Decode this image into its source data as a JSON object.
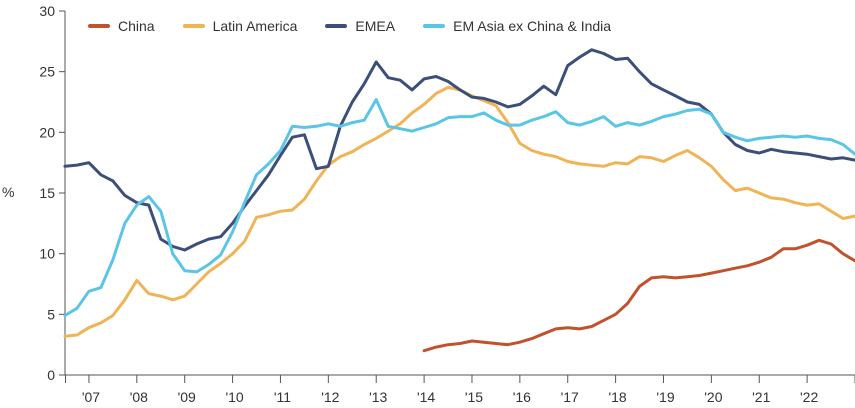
{
  "chart_data": {
    "type": "line",
    "ylabel": "%",
    "ylim": [
      0,
      30
    ],
    "yticks": [
      "0",
      "5",
      "10",
      "15",
      "20",
      "25",
      "30"
    ],
    "xlim": [
      2006.5,
      2023.0
    ],
    "xtick_labels": [
      "'07",
      "'08",
      "'09",
      "'10",
      "'11",
      "'12",
      "'13",
      "'14",
      "'15",
      "'16",
      "'17",
      "'18",
      "'19",
      "'20",
      "'21",
      "'22"
    ],
    "legend_position": "top",
    "grid": false,
    "series": [
      {
        "name": "China",
        "color": "#c0532d",
        "x": [
          2014.0,
          2014.25,
          2014.5,
          2014.75,
          2015.0,
          2015.25,
          2015.5,
          2015.75,
          2016.0,
          2016.25,
          2016.5,
          2016.75,
          2017.0,
          2017.25,
          2017.5,
          2017.75,
          2018.0,
          2018.25,
          2018.5,
          2018.75,
          2019.0,
          2019.25,
          2019.5,
          2019.75,
          2020.0,
          2020.25,
          2020.5,
          2020.75,
          2021.0,
          2021.25,
          2021.5,
          2021.75,
          2022.0,
          2022.25,
          2022.5,
          2022.75,
          2023.0
        ],
        "values": [
          2.0,
          2.3,
          2.5,
          2.6,
          2.8,
          2.7,
          2.6,
          2.5,
          2.7,
          3.0,
          3.4,
          3.8,
          3.9,
          3.8,
          4.0,
          4.5,
          5.0,
          5.9,
          7.3,
          8.0,
          8.1,
          8.0,
          8.1,
          8.2,
          8.4,
          8.6,
          8.8,
          9.0,
          9.3,
          9.7,
          10.4,
          10.4,
          10.7,
          11.1,
          10.8,
          10.0,
          9.4
        ]
      },
      {
        "name": "Latin America",
        "color": "#f0b456",
        "x": [
          2006.5,
          2006.75,
          2007.0,
          2007.25,
          2007.5,
          2007.75,
          2008.0,
          2008.25,
          2008.5,
          2008.75,
          2009.0,
          2009.25,
          2009.5,
          2009.75,
          2010.0,
          2010.25,
          2010.5,
          2010.75,
          2011.0,
          2011.25,
          2011.5,
          2011.75,
          2012.0,
          2012.25,
          2012.5,
          2012.75,
          2013.0,
          2013.25,
          2013.5,
          2013.75,
          2014.0,
          2014.25,
          2014.5,
          2014.75,
          2015.0,
          2015.25,
          2015.5,
          2015.75,
          2016.0,
          2016.25,
          2016.5,
          2016.75,
          2017.0,
          2017.25,
          2017.5,
          2017.75,
          2018.0,
          2018.25,
          2018.5,
          2018.75,
          2019.0,
          2019.25,
          2019.5,
          2019.75,
          2020.0,
          2020.25,
          2020.5,
          2020.75,
          2021.0,
          2021.25,
          2021.5,
          2021.75,
          2022.0,
          2022.25,
          2022.5,
          2022.75,
          2023.0
        ],
        "values": [
          3.2,
          3.3,
          3.9,
          4.3,
          4.9,
          6.2,
          7.8,
          6.7,
          6.5,
          6.2,
          6.5,
          7.5,
          8.5,
          9.2,
          10.0,
          11.0,
          13.0,
          13.2,
          13.5,
          13.6,
          14.5,
          16.0,
          17.3,
          18.0,
          18.4,
          19.0,
          19.5,
          20.1,
          20.7,
          21.6,
          22.3,
          23.2,
          23.7,
          23.5,
          23.0,
          22.6,
          22.2,
          20.8,
          19.1,
          18.5,
          18.2,
          18.0,
          17.6,
          17.4,
          17.3,
          17.2,
          17.5,
          17.4,
          18.0,
          17.9,
          17.6,
          18.1,
          18.5,
          17.9,
          17.2,
          16.1,
          15.2,
          15.4,
          15.0,
          14.6,
          14.5,
          14.2,
          14.0,
          14.1,
          13.5,
          12.9,
          13.1
        ]
      },
      {
        "name": "EMEA",
        "color": "#3b4f7a",
        "x": [
          2006.5,
          2006.75,
          2007.0,
          2007.25,
          2007.5,
          2007.75,
          2008.0,
          2008.25,
          2008.5,
          2008.75,
          2009.0,
          2009.25,
          2009.5,
          2009.75,
          2010.0,
          2010.25,
          2010.5,
          2010.75,
          2011.0,
          2011.25,
          2011.5,
          2011.75,
          2012.0,
          2012.25,
          2012.5,
          2012.75,
          2013.0,
          2013.25,
          2013.5,
          2013.75,
          2014.0,
          2014.25,
          2014.5,
          2014.75,
          2015.0,
          2015.25,
          2015.5,
          2015.75,
          2016.0,
          2016.25,
          2016.5,
          2016.75,
          2017.0,
          2017.25,
          2017.5,
          2017.75,
          2018.0,
          2018.25,
          2018.5,
          2018.75,
          2019.0,
          2019.25,
          2019.5,
          2019.75,
          2020.0,
          2020.25,
          2020.5,
          2020.75,
          2021.0,
          2021.25,
          2021.5,
          2021.75,
          2022.0,
          2022.25,
          2022.5,
          2022.75,
          2023.0
        ],
        "values": [
          17.2,
          17.3,
          17.5,
          16.5,
          16.0,
          14.8,
          14.2,
          14.0,
          11.2,
          10.6,
          10.3,
          10.8,
          11.2,
          11.4,
          12.5,
          13.9,
          15.2,
          16.5,
          18.1,
          19.6,
          19.8,
          17.0,
          17.2,
          20.5,
          22.5,
          24.0,
          25.8,
          24.5,
          24.3,
          23.5,
          24.4,
          24.6,
          24.2,
          23.5,
          22.9,
          22.8,
          22.5,
          22.1,
          22.3,
          23.0,
          23.8,
          23.1,
          25.5,
          26.2,
          26.8,
          26.5,
          26.0,
          26.1,
          25.0,
          24.0,
          23.5,
          23.0,
          22.5,
          22.3,
          21.5,
          20.0,
          19.0,
          18.5,
          18.3,
          18.6,
          18.4,
          18.3,
          18.2,
          18.0,
          17.8,
          17.9,
          17.7
        ]
      },
      {
        "name": "EM Asia ex China & India",
        "color": "#5bc5e8",
        "x": [
          2006.5,
          2006.75,
          2007.0,
          2007.25,
          2007.5,
          2007.75,
          2008.0,
          2008.25,
          2008.5,
          2008.75,
          2009.0,
          2009.25,
          2009.5,
          2009.75,
          2010.0,
          2010.25,
          2010.5,
          2010.75,
          2011.0,
          2011.25,
          2011.5,
          2011.75,
          2012.0,
          2012.25,
          2012.5,
          2012.75,
          2013.0,
          2013.25,
          2013.5,
          2013.75,
          2014.0,
          2014.25,
          2014.5,
          2014.75,
          2015.0,
          2015.25,
          2015.5,
          2015.75,
          2016.0,
          2016.25,
          2016.5,
          2016.75,
          2017.0,
          2017.25,
          2017.5,
          2017.75,
          2018.0,
          2018.25,
          2018.5,
          2018.75,
          2019.0,
          2019.25,
          2019.5,
          2019.75,
          2020.0,
          2020.25,
          2020.5,
          2020.75,
          2021.0,
          2021.25,
          2021.5,
          2021.75,
          2022.0,
          2022.25,
          2022.5,
          2022.75,
          2023.0
        ],
        "values": [
          4.9,
          5.5,
          6.9,
          7.2,
          9.5,
          12.5,
          14.0,
          14.7,
          13.5,
          10.0,
          8.6,
          8.5,
          9.1,
          9.9,
          11.8,
          14.2,
          16.5,
          17.4,
          18.5,
          20.5,
          20.4,
          20.5,
          20.7,
          20.5,
          20.8,
          21.0,
          22.7,
          20.5,
          20.3,
          20.1,
          20.4,
          20.7,
          21.2,
          21.3,
          21.3,
          21.6,
          21.0,
          20.6,
          20.6,
          21.0,
          21.3,
          21.7,
          20.8,
          20.6,
          20.9,
          21.3,
          20.5,
          20.8,
          20.6,
          20.9,
          21.3,
          21.5,
          21.8,
          21.9,
          21.5,
          20.0,
          19.6,
          19.3,
          19.5,
          19.6,
          19.7,
          19.6,
          19.7,
          19.5,
          19.4,
          19.0,
          18.2
        ]
      }
    ]
  }
}
